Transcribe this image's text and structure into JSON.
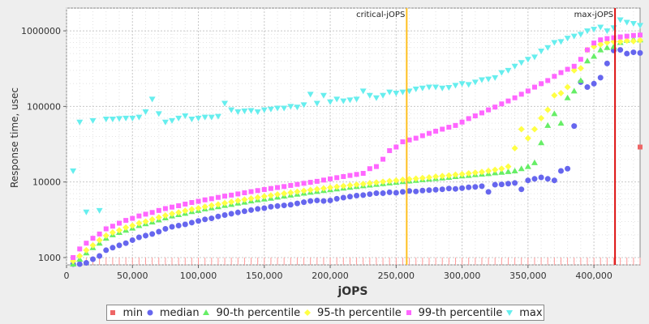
{
  "chart_data": {
    "type": "scatter",
    "xlabel": "jOPS",
    "ylabel": "Response time, usec",
    "xlim": [
      0,
      435000
    ],
    "ylim": [
      800,
      2000000
    ],
    "yscale": "log",
    "x_ticks": [
      "0",
      "50,000",
      "100,000",
      "150,000",
      "200,000",
      "250,000",
      "300,000",
      "350,000",
      "400,000"
    ],
    "x_tick_values": [
      0,
      50000,
      100000,
      150000,
      200000,
      250000,
      300000,
      350000,
      400000
    ],
    "y_ticks": [
      "1000",
      "10000",
      "100000",
      "1000000"
    ],
    "y_tick_values": [
      1000,
      10000,
      100000,
      1000000
    ],
    "grid": true,
    "legend_position": "bottom",
    "markers": [
      {
        "label": "critical-jOPS",
        "x": 258000,
        "color": "#ffc020"
      },
      {
        "label": "max-jOPS",
        "x": 416000,
        "color": "#dd1111"
      }
    ],
    "series": [
      {
        "name": "min",
        "color": "#ee6666",
        "symbol": "square",
        "x": [
          435000
        ],
        "y": [
          29000
        ]
      },
      {
        "name": "median",
        "color": "#6666ee",
        "symbol": "circle",
        "x": [
          5000,
          10000,
          15000,
          20000,
          25000,
          30000,
          35000,
          40000,
          45000,
          50000,
          55000,
          60000,
          65000,
          70000,
          75000,
          80000,
          85000,
          90000,
          95000,
          100000,
          105000,
          110000,
          115000,
          120000,
          125000,
          130000,
          135000,
          140000,
          145000,
          150000,
          155000,
          160000,
          165000,
          170000,
          175000,
          180000,
          185000,
          190000,
          195000,
          200000,
          205000,
          210000,
          215000,
          220000,
          225000,
          230000,
          235000,
          240000,
          245000,
          250000,
          255000,
          260000,
          265000,
          270000,
          275000,
          280000,
          285000,
          290000,
          295000,
          300000,
          305000,
          310000,
          315000,
          320000,
          325000,
          330000,
          335000,
          340000,
          345000,
          350000,
          355000,
          360000,
          365000,
          370000,
          375000,
          380000,
          385000,
          390000,
          395000,
          400000,
          405000,
          410000,
          415000,
          420000,
          425000,
          430000,
          435000
        ],
        "y": [
          600,
          700,
          850,
          950,
          1050,
          1250,
          1350,
          1450,
          1550,
          1700,
          1850,
          1950,
          2050,
          2200,
          2400,
          2550,
          2650,
          2750,
          2900,
          3050,
          3200,
          3300,
          3500,
          3650,
          3800,
          3950,
          4100,
          4250,
          4400,
          4500,
          4700,
          4800,
          4900,
          5000,
          5200,
          5400,
          5600,
          5700,
          5600,
          5700,
          6000,
          6200,
          6400,
          6600,
          6700,
          6900,
          7100,
          7100,
          7300,
          7200,
          7400,
          7600,
          7500,
          7700,
          7800,
          7900,
          8000,
          8200,
          8100,
          8300,
          8500,
          8600,
          8800,
          7400,
          9200,
          9300,
          9500,
          9700,
          8000,
          10500,
          11000,
          11500,
          11000,
          10500,
          14000,
          15000,
          55000,
          210000,
          180000,
          200000,
          240000,
          370000,
          550000,
          560000,
          500000,
          520000,
          510000
        ]
      },
      {
        "name": "90-th percentile",
        "color": "#66ee66",
        "symbol": "triangle-up",
        "x": [
          5000,
          10000,
          15000,
          20000,
          25000,
          30000,
          35000,
          40000,
          45000,
          50000,
          55000,
          60000,
          65000,
          70000,
          75000,
          80000,
          85000,
          90000,
          95000,
          100000,
          105000,
          110000,
          115000,
          120000,
          125000,
          130000,
          135000,
          140000,
          145000,
          150000,
          155000,
          160000,
          165000,
          170000,
          175000,
          180000,
          185000,
          190000,
          195000,
          200000,
          205000,
          210000,
          215000,
          220000,
          225000,
          230000,
          235000,
          240000,
          245000,
          250000,
          255000,
          260000,
          265000,
          270000,
          275000,
          280000,
          285000,
          290000,
          295000,
          300000,
          305000,
          310000,
          315000,
          320000,
          325000,
          330000,
          335000,
          340000,
          345000,
          350000,
          355000,
          360000,
          365000,
          370000,
          375000,
          380000,
          385000,
          390000,
          395000,
          400000,
          405000,
          410000,
          415000,
          420000,
          425000,
          430000,
          435000
        ],
        "y": [
          800,
          950,
          1150,
          1350,
          1550,
          1800,
          2000,
          2150,
          2300,
          2450,
          2650,
          2800,
          2950,
          3150,
          3350,
          3550,
          3700,
          3850,
          4050,
          4200,
          4400,
          4550,
          4700,
          4900,
          5050,
          5250,
          5400,
          5600,
          5800,
          5950,
          6100,
          6300,
          6500,
          6700,
          6900,
          7100,
          7300,
          7500,
          7700,
          7900,
          8100,
          8300,
          8500,
          8700,
          8900,
          9100,
          9300,
          9500,
          9700,
          9900,
          10100,
          10300,
          10500,
          10700,
          10900,
          11100,
          11300,
          11500,
          11800,
          12000,
          12200,
          12500,
          12700,
          12900,
          13200,
          13400,
          13700,
          14000,
          15000,
          16000,
          18000,
          33000,
          56000,
          80000,
          60000,
          130000,
          160000,
          220000,
          400000,
          460000,
          560000,
          600000,
          620000,
          700000,
          750000,
          770000,
          760000
        ]
      },
      {
        "name": "95-th percentile",
        "color": "#ffff44",
        "symbol": "diamond",
        "x": [
          5000,
          10000,
          15000,
          20000,
          25000,
          30000,
          35000,
          40000,
          45000,
          50000,
          55000,
          60000,
          65000,
          70000,
          75000,
          80000,
          85000,
          90000,
          95000,
          100000,
          105000,
          110000,
          115000,
          120000,
          125000,
          130000,
          135000,
          140000,
          145000,
          150000,
          155000,
          160000,
          165000,
          170000,
          175000,
          180000,
          185000,
          190000,
          195000,
          200000,
          205000,
          210000,
          215000,
          220000,
          225000,
          230000,
          235000,
          240000,
          245000,
          250000,
          255000,
          260000,
          265000,
          270000,
          275000,
          280000,
          285000,
          290000,
          295000,
          300000,
          305000,
          310000,
          315000,
          320000,
          325000,
          330000,
          335000,
          340000,
          345000,
          350000,
          355000,
          360000,
          365000,
          370000,
          375000,
          380000,
          385000,
          390000,
          395000,
          400000,
          405000,
          410000,
          415000,
          420000,
          425000,
          430000,
          435000
        ],
        "y": [
          900,
          1050,
          1250,
          1450,
          1700,
          1950,
          2150,
          2300,
          2500,
          2650,
          2850,
          3000,
          3200,
          3400,
          3600,
          3800,
          3950,
          4150,
          4350,
          4500,
          4700,
          4900,
          5050,
          5250,
          5450,
          5650,
          5850,
          6050,
          6250,
          6450,
          6650,
          6850,
          7050,
          7250,
          7450,
          7650,
          7850,
          8050,
          8250,
          8450,
          8650,
          8850,
          9050,
          9250,
          9450,
          9650,
          9850,
          10100,
          10300,
          10500,
          10700,
          10900,
          11100,
          11300,
          11500,
          11800,
          12000,
          12200,
          12500,
          12700,
          13000,
          13300,
          13600,
          14000,
          14500,
          15000,
          16000,
          28000,
          50000,
          38000,
          50000,
          70000,
          90000,
          140000,
          150000,
          180000,
          300000,
          320000,
          560000,
          620000,
          660000,
          700000,
          720000,
          720000,
          740000,
          730000,
          750000
        ]
      },
      {
        "name": "99-th percentile",
        "color": "#ff66ff",
        "symbol": "square",
        "x": [
          5000,
          10000,
          15000,
          20000,
          25000,
          30000,
          35000,
          40000,
          45000,
          50000,
          55000,
          60000,
          65000,
          70000,
          75000,
          80000,
          85000,
          90000,
          95000,
          100000,
          105000,
          110000,
          115000,
          120000,
          125000,
          130000,
          135000,
          140000,
          145000,
          150000,
          155000,
          160000,
          165000,
          170000,
          175000,
          180000,
          185000,
          190000,
          195000,
          200000,
          205000,
          210000,
          215000,
          220000,
          225000,
          230000,
          235000,
          240000,
          245000,
          250000,
          255000,
          260000,
          265000,
          270000,
          275000,
          280000,
          285000,
          290000,
          295000,
          300000,
          305000,
          310000,
          315000,
          320000,
          325000,
          330000,
          335000,
          340000,
          345000,
          350000,
          355000,
          360000,
          365000,
          370000,
          375000,
          380000,
          385000,
          390000,
          395000,
          400000,
          405000,
          410000,
          415000,
          420000,
          425000,
          430000,
          435000
        ],
        "y": [
          1000,
          1300,
          1550,
          1800,
          2050,
          2400,
          2600,
          2850,
          3100,
          3300,
          3550,
          3750,
          3950,
          4200,
          4450,
          4650,
          4850,
          5100,
          5350,
          5550,
          5800,
          6000,
          6250,
          6500,
          6700,
          6950,
          7200,
          7450,
          7700,
          7950,
          8200,
          8450,
          8700,
          9000,
          9300,
          9600,
          9900,
          10200,
          10600,
          11000,
          11400,
          11800,
          12200,
          12600,
          13000,
          15000,
          16000,
          20000,
          26000,
          29000,
          34000,
          36000,
          38000,
          41000,
          44000,
          47000,
          50000,
          53000,
          56000,
          62000,
          69000,
          75000,
          82000,
          90000,
          98000,
          108000,
          118000,
          130000,
          145000,
          160000,
          180000,
          200000,
          220000,
          250000,
          280000,
          310000,
          340000,
          420000,
          560000,
          690000,
          760000,
          790000,
          810000,
          830000,
          850000,
          870000,
          880000
        ]
      },
      {
        "name": "max",
        "color": "#66eeee",
        "symbol": "triangle-down",
        "x": [
          5000,
          10000,
          15000,
          20000,
          25000,
          30000,
          35000,
          40000,
          45000,
          50000,
          55000,
          60000,
          65000,
          70000,
          75000,
          80000,
          85000,
          90000,
          95000,
          100000,
          105000,
          110000,
          115000,
          120000,
          125000,
          130000,
          135000,
          140000,
          145000,
          150000,
          155000,
          160000,
          165000,
          170000,
          175000,
          180000,
          185000,
          190000,
          195000,
          200000,
          205000,
          210000,
          215000,
          220000,
          225000,
          230000,
          235000,
          240000,
          245000,
          250000,
          255000,
          260000,
          265000,
          270000,
          275000,
          280000,
          285000,
          290000,
          295000,
          300000,
          305000,
          310000,
          315000,
          320000,
          325000,
          330000,
          335000,
          340000,
          345000,
          350000,
          355000,
          360000,
          365000,
          370000,
          375000,
          380000,
          385000,
          390000,
          395000,
          400000,
          405000,
          410000,
          415000,
          420000,
          425000,
          430000,
          435000
        ],
        "y": [
          14000,
          62000,
          4000,
          65000,
          4200,
          68000,
          68000,
          69000,
          70000,
          70000,
          72000,
          85000,
          125000,
          80000,
          62000,
          65000,
          70000,
          75000,
          68000,
          70000,
          72000,
          72000,
          74000,
          110000,
          90000,
          85000,
          87000,
          88000,
          85000,
          90000,
          92000,
          95000,
          95000,
          100000,
          98000,
          105000,
          145000,
          110000,
          140000,
          115000,
          125000,
          118000,
          122000,
          125000,
          160000,
          140000,
          130000,
          140000,
          155000,
          150000,
          155000,
          160000,
          170000,
          175000,
          180000,
          180000,
          175000,
          178000,
          190000,
          200000,
          195000,
          210000,
          225000,
          230000,
          240000,
          280000,
          300000,
          340000,
          380000,
          420000,
          450000,
          540000,
          600000,
          700000,
          720000,
          800000,
          850000,
          900000,
          1000000,
          1050000,
          1120000,
          1000000,
          1100000,
          1400000,
          1300000,
          1250000,
          1180000
        ]
      }
    ]
  }
}
